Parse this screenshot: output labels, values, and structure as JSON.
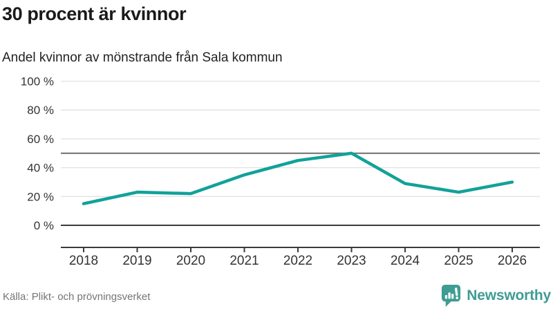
{
  "header": {
    "title": "30 procent är kvinnor",
    "subtitle": "Andel kvinnor av mönstrande från Sala kommun"
  },
  "footer": {
    "source": "Källa: Plikt- och prövningsverket",
    "brand": "Newsworthy"
  },
  "colors": {
    "line": "#12a19a",
    "brand": "#3f9c93",
    "grid": "#e1e1e1",
    "reference": "#6f6f6f",
    "axis": "#3a3a3a",
    "tick_text": "#333333"
  },
  "chart_data": {
    "type": "line",
    "title": "30 procent är kvinnor",
    "subtitle": "Andel kvinnor av mönstrande från Sala kommun",
    "categories": [
      "2018",
      "2019",
      "2020",
      "2021",
      "2022",
      "2023",
      "2024",
      "2025",
      "2026"
    ],
    "series": [
      {
        "name": "Andel kvinnor av mönstrande",
        "values": [
          15,
          23,
          22,
          35,
          45,
          50,
          29,
          23,
          30
        ]
      }
    ],
    "xlabel": "",
    "ylabel": "",
    "ylim": [
      0,
      100
    ],
    "yticks": [
      0,
      20,
      40,
      60,
      80,
      100
    ],
    "ytick_format": "{v} %",
    "reference_line": 50,
    "grid": true,
    "legend": false,
    "source": "Källa: Plikt- och prövningsverket"
  }
}
